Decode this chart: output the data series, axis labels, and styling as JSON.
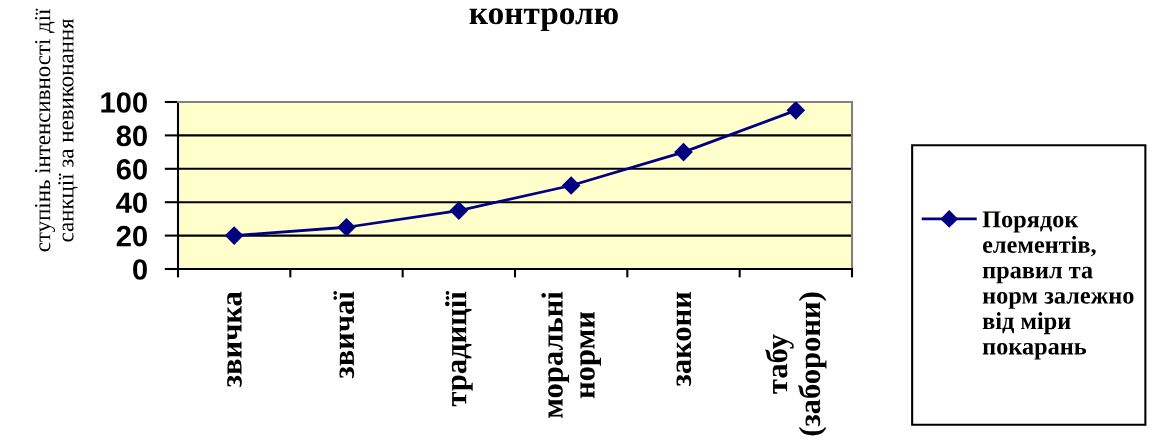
{
  "chart_data": {
    "type": "line",
    "title": "контролю",
    "ylabel": "ступінь інтенсивності дії\nсанкції за невиконання",
    "categories": [
      "звичка",
      "звичаї",
      "традиції",
      "моральні\nнорми",
      "закони",
      "табу\n(заборони)"
    ],
    "series": [
      {
        "name": "Порядок\nелементів,\nправил та\nнорм залежно\nвід міри\nпокарань",
        "color": "#000080",
        "values": [
          20,
          25,
          35,
          50,
          70,
          95
        ]
      }
    ],
    "ylim": [
      0,
      100
    ],
    "yticks": [
      0,
      20,
      40,
      60,
      80,
      100
    ],
    "grid": "y",
    "legend": "right",
    "marker": "diamond",
    "line_style": "solid"
  }
}
